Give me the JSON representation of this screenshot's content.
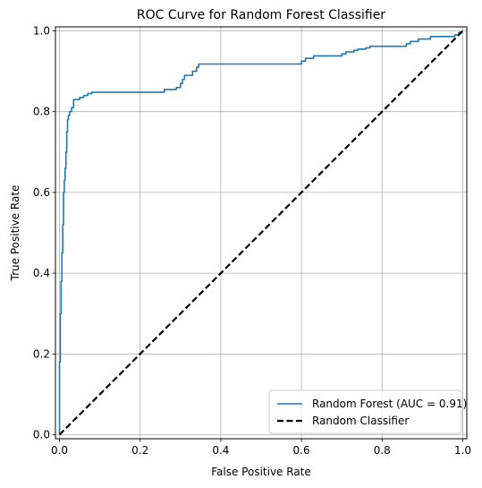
{
  "chart_data": {
    "type": "line",
    "title": "ROC Curve for Random Forest Classifier",
    "xlabel": "False Positive Rate",
    "ylabel": "True Positive Rate",
    "xlim": [
      -0.01,
      1.01
    ],
    "ylim": [
      -0.01,
      1.01
    ],
    "xticks": [
      0.0,
      0.2,
      0.4,
      0.6,
      0.8,
      1.0
    ],
    "xtick_labels": [
      "0.0",
      "0.2",
      "0.4",
      "0.6",
      "0.8",
      "1.0"
    ],
    "yticks": [
      0.0,
      0.2,
      0.4,
      0.6,
      0.8,
      1.0
    ],
    "ytick_labels": [
      "0.0",
      "0.2",
      "0.4",
      "0.6",
      "0.8",
      "1.0"
    ],
    "grid": true,
    "legend_position": "lower-right",
    "series": [
      {
        "name": "Random Forest (AUC = 0.91)",
        "color": "#1f77b4",
        "style": "solid",
        "x": [
          0.0,
          0.0,
          0.002,
          0.002,
          0.004,
          0.004,
          0.006,
          0.006,
          0.008,
          0.008,
          0.01,
          0.01,
          0.012,
          0.012,
          0.014,
          0.014,
          0.016,
          0.016,
          0.018,
          0.018,
          0.02,
          0.02,
          0.022,
          0.022,
          0.025,
          0.025,
          0.03,
          0.03,
          0.035,
          0.035,
          0.05,
          0.05,
          0.06,
          0.06,
          0.07,
          0.07,
          0.08,
          0.08,
          0.26,
          0.26,
          0.29,
          0.29,
          0.3,
          0.3,
          0.305,
          0.305,
          0.31,
          0.31,
          0.33,
          0.33,
          0.34,
          0.34,
          0.345,
          0.345,
          0.6,
          0.6,
          0.61,
          0.61,
          0.63,
          0.63,
          0.7,
          0.7,
          0.71,
          0.71,
          0.73,
          0.73,
          0.74,
          0.74,
          0.76,
          0.76,
          0.77,
          0.77,
          0.86,
          0.86,
          0.87,
          0.87,
          0.89,
          0.89,
          0.92,
          0.92,
          0.98,
          0.98,
          0.99,
          0.99,
          1.0
        ],
        "y": [
          0.0,
          0.18,
          0.18,
          0.3,
          0.3,
          0.38,
          0.38,
          0.45,
          0.45,
          0.52,
          0.52,
          0.6,
          0.6,
          0.63,
          0.63,
          0.66,
          0.66,
          0.7,
          0.7,
          0.75,
          0.75,
          0.78,
          0.78,
          0.79,
          0.79,
          0.8,
          0.8,
          0.81,
          0.81,
          0.83,
          0.83,
          0.835,
          0.835,
          0.84,
          0.84,
          0.845,
          0.845,
          0.848,
          0.848,
          0.855,
          0.855,
          0.86,
          0.86,
          0.87,
          0.87,
          0.88,
          0.88,
          0.89,
          0.89,
          0.9,
          0.9,
          0.91,
          0.91,
          0.918,
          0.918,
          0.925,
          0.925,
          0.932,
          0.932,
          0.938,
          0.938,
          0.943,
          0.943,
          0.948,
          0.948,
          0.952,
          0.952,
          0.955,
          0.955,
          0.958,
          0.958,
          0.962,
          0.962,
          0.968,
          0.968,
          0.974,
          0.974,
          0.98,
          0.98,
          0.986,
          0.986,
          0.99,
          0.99,
          0.995,
          1.0
        ]
      },
      {
        "name": "Random Classifier",
        "color": "#000000",
        "style": "dashed",
        "x": [
          0.0,
          1.0
        ],
        "y": [
          0.0,
          1.0
        ]
      }
    ]
  }
}
